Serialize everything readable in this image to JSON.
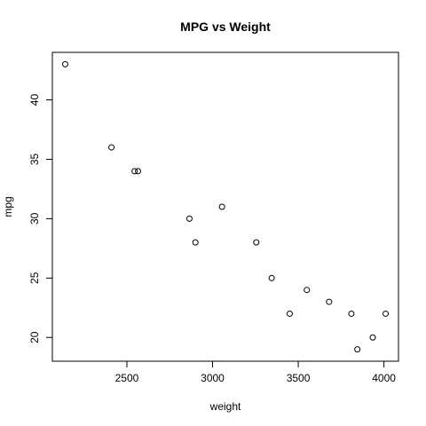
{
  "chart_data": {
    "type": "scatter",
    "title": "MPG vs Weight",
    "xlabel": "weight",
    "ylabel": "mpg",
    "xlim": [
      2065,
      4085
    ],
    "ylim": [
      18,
      44
    ],
    "x_ticks": [
      2500,
      3000,
      3500,
      4000
    ],
    "y_ticks": [
      20,
      25,
      30,
      35,
      40
    ],
    "grid": false,
    "marker": "open-circle",
    "points": [
      {
        "x": 2140,
        "y": 43
      },
      {
        "x": 2410,
        "y": 36
      },
      {
        "x": 2545,
        "y": 34
      },
      {
        "x": 2565,
        "y": 34
      },
      {
        "x": 2865,
        "y": 30
      },
      {
        "x": 2900,
        "y": 28
      },
      {
        "x": 3055,
        "y": 31
      },
      {
        "x": 3255,
        "y": 28
      },
      {
        "x": 3345,
        "y": 25
      },
      {
        "x": 3450,
        "y": 22
      },
      {
        "x": 3550,
        "y": 24
      },
      {
        "x": 3680,
        "y": 23
      },
      {
        "x": 3810,
        "y": 22
      },
      {
        "x": 3845,
        "y": 19
      },
      {
        "x": 3935,
        "y": 20
      },
      {
        "x": 4010,
        "y": 22
      }
    ]
  }
}
